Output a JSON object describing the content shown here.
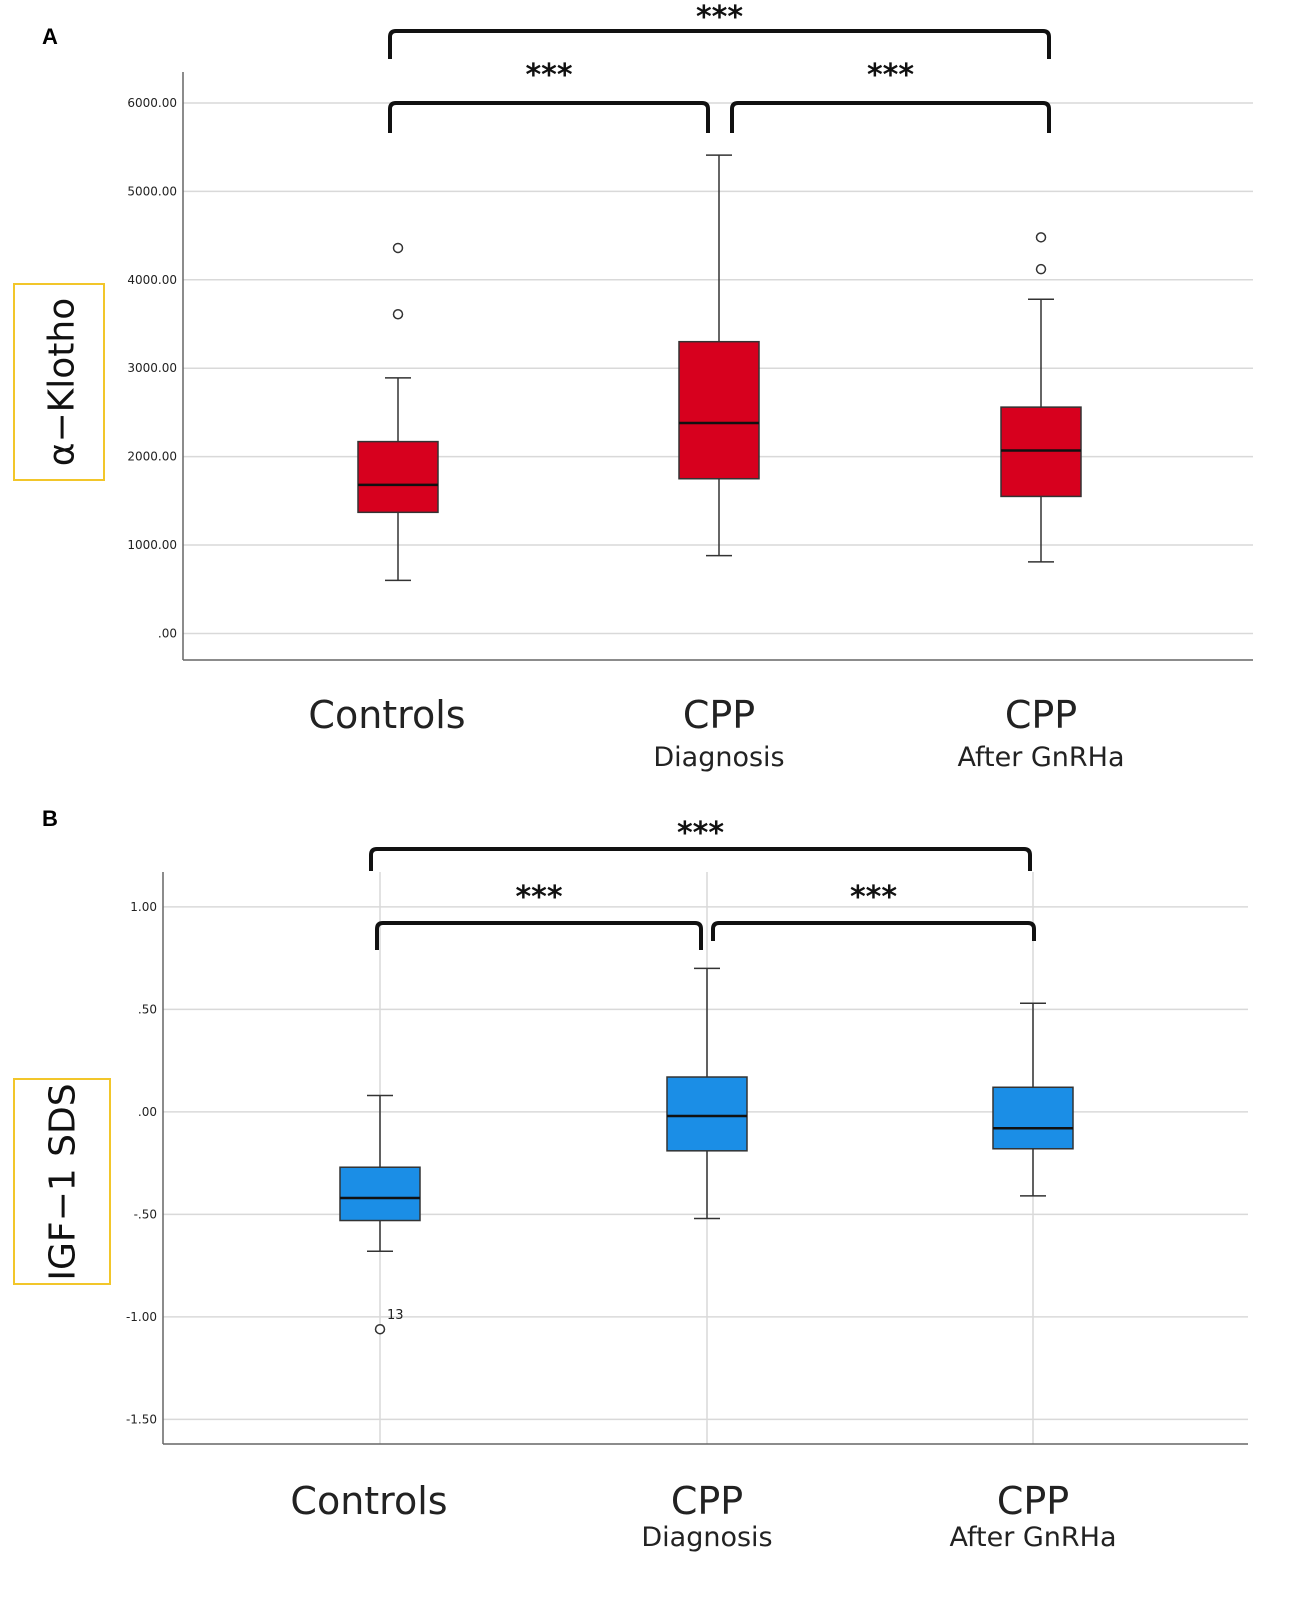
{
  "chart_data": [
    {
      "panel": "A",
      "type": "boxplot",
      "ylabel": "α−Klotho",
      "ylim": [
        -300,
        6350
      ],
      "yticks": [
        0,
        1000,
        2000,
        3000,
        4000,
        5000,
        6000
      ],
      "ytick_labels": [
        ".00",
        "1000.00",
        "2000.00",
        "3000.00",
        "4000.00",
        "5000.00",
        "6000.00"
      ],
      "box_color": "#d7001e",
      "categories": [
        {
          "main": "Controls",
          "sub": ""
        },
        {
          "main": "CPP",
          "sub": "Diagnosis"
        },
        {
          "main": "CPP",
          "sub": "After GnRHa"
        }
      ],
      "boxes": [
        {
          "whisker_low": 600,
          "q1": 1370,
          "median": 1680,
          "q3": 2170,
          "whisker_high": 2890,
          "outliers": [
            {
              "value": 3610,
              "label": ""
            },
            {
              "value": 4360,
              "label": ""
            }
          ]
        },
        {
          "whisker_low": 880,
          "q1": 1750,
          "median": 2380,
          "q3": 3300,
          "whisker_high": 5410,
          "outliers": []
        },
        {
          "whisker_low": 810,
          "q1": 1550,
          "median": 2070,
          "q3": 2560,
          "whisker_high": 3780,
          "outliers": [
            {
              "value": 4120,
              "label": ""
            },
            {
              "value": 4480,
              "label": ""
            }
          ]
        }
      ],
      "significance": [
        {
          "from": 0,
          "to": 2,
          "label": "***",
          "level": "top"
        },
        {
          "from": 0,
          "to": 1,
          "label": "***",
          "level": "lower"
        },
        {
          "from": 1,
          "to": 2,
          "label": "***",
          "level": "lower"
        }
      ]
    },
    {
      "panel": "B",
      "type": "boxplot",
      "ylabel": "IGF−1 SDS",
      "ylim": [
        -1.62,
        1.17
      ],
      "yticks": [
        -1.5,
        -1.0,
        -0.5,
        0,
        0.5,
        1.0
      ],
      "ytick_labels": [
        "-1.50",
        "-1.00",
        "-.50",
        ".00",
        ".50",
        "1.00"
      ],
      "box_color": "#1b8ee6",
      "categories": [
        {
          "main": "Controls",
          "sub": ""
        },
        {
          "main": "CPP",
          "sub": "Diagnosis"
        },
        {
          "main": "CPP",
          "sub": "After GnRHa"
        }
      ],
      "boxes": [
        {
          "whisker_low": -0.68,
          "q1": -0.53,
          "median": -0.42,
          "q3": -0.27,
          "whisker_high": 0.08,
          "outliers": [
            {
              "value": -1.06,
              "label": "13"
            }
          ]
        },
        {
          "whisker_low": -0.52,
          "q1": -0.19,
          "median": -0.02,
          "q3": 0.17,
          "whisker_high": 0.7,
          "outliers": []
        },
        {
          "whisker_low": -0.41,
          "q1": -0.18,
          "median": -0.08,
          "q3": 0.12,
          "whisker_high": 0.53,
          "outliers": []
        }
      ],
      "significance": [
        {
          "from": 0,
          "to": 2,
          "label": "***",
          "level": "top"
        },
        {
          "from": 0,
          "to": 1,
          "label": "***",
          "level": "lower"
        },
        {
          "from": 1,
          "to": 2,
          "label": "***",
          "level": "lower"
        }
      ]
    }
  ]
}
